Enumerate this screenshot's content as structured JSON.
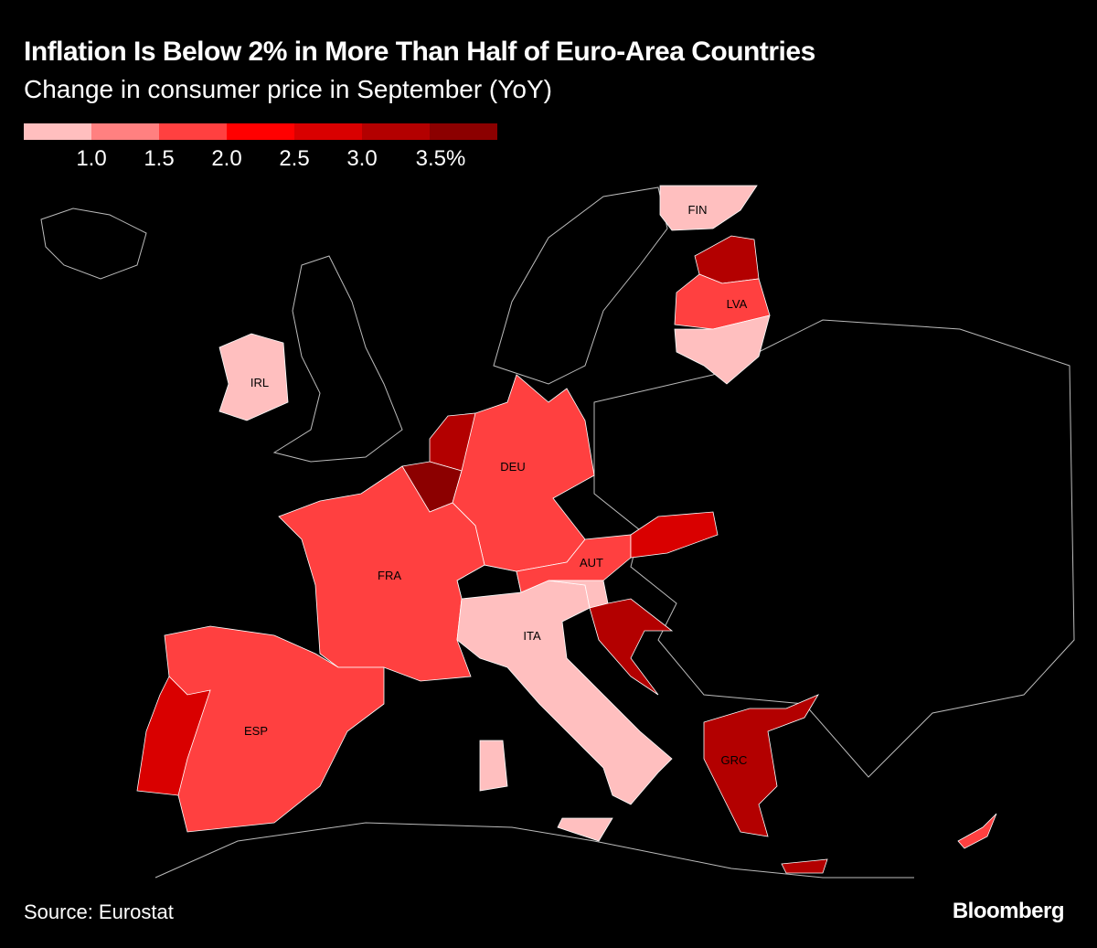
{
  "title": "Inflation Is Below 2% in More Than Half of Euro-Area Countries",
  "subtitle": "Change in consumer price in September (YoY)",
  "legend": {
    "colors": [
      "#ffbfbf",
      "#ff8080",
      "#ff4040",
      "#ff0000",
      "#d90000",
      "#b30000",
      "#8c0000"
    ],
    "ticks": [
      "1.0",
      "1.5",
      "2.0",
      "2.5",
      "3.0",
      "3.5%"
    ]
  },
  "countries": {
    "FIN": {
      "label": "FIN",
      "color": "#ffbfbf"
    },
    "EST": {
      "color": "#b30000"
    },
    "LVA": {
      "label": "LVA",
      "color": "#ff4040"
    },
    "LTU": {
      "color": "#ffbfbf"
    },
    "IRL": {
      "label": "IRL",
      "color": "#ffbfbf"
    },
    "NLD": {
      "color": "#b30000"
    },
    "BEL": {
      "color": "#8c0000"
    },
    "DEU": {
      "label": "DEU",
      "color": "#ff4040"
    },
    "FRA": {
      "label": "FRA",
      "color": "#ff4040"
    },
    "ESP": {
      "label": "ESP",
      "color": "#ff4040"
    },
    "PRT": {
      "color": "#d90000"
    },
    "ITA": {
      "label": "ITA",
      "color": "#ffbfbf"
    },
    "AUT": {
      "label": "AUT",
      "color": "#ff4040"
    },
    "SVK": {
      "color": "#d90000"
    },
    "SVN": {
      "color": "#ffbfbf"
    },
    "HRV": {
      "color": "#b30000"
    },
    "GRC": {
      "label": "GRC",
      "color": "#b30000"
    },
    "CYP": {
      "color": "#ff4040"
    }
  },
  "source": "Source: Eurostat",
  "brand": "Bloomberg"
}
